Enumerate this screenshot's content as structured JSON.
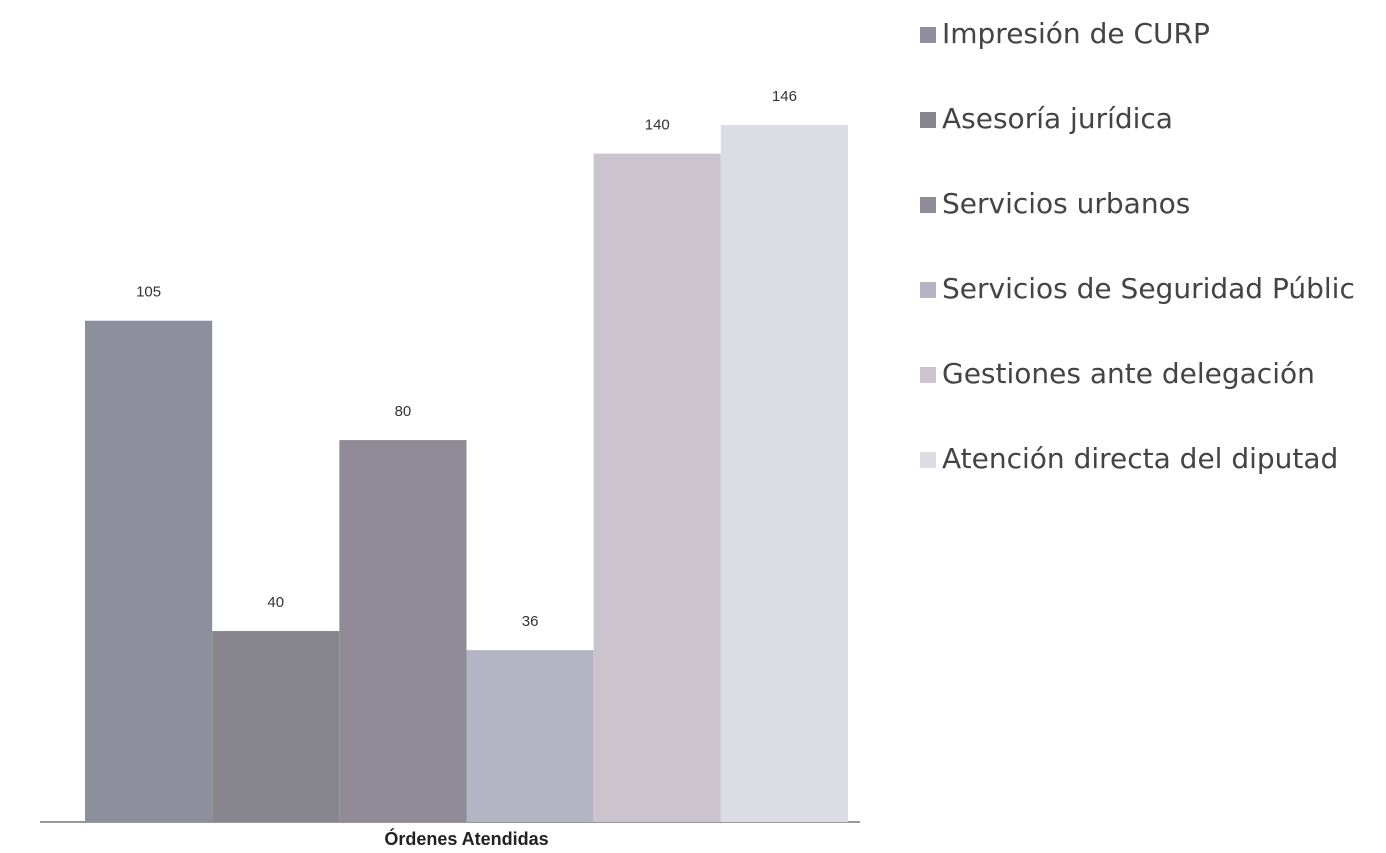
{
  "chart_data": {
    "type": "bar",
    "categories": [
      "Órdenes Atendidas"
    ],
    "series": [
      {
        "name": "Impresión de CURP",
        "color": "#8d909c",
        "values": [
          105
        ]
      },
      {
        "name": "Asesoría jurídica",
        "color": "#87868f",
        "values": [
          40
        ]
      },
      {
        "name": "Servicios urbanos",
        "color": "#908b96",
        "values": [
          80
        ]
      },
      {
        "name": "Servicios de Seguridad Públic",
        "color": "#b3b5c4",
        "values": [
          36
        ]
      },
      {
        "name": "Gestiones ante delegación",
        "color": "#cbc3cd",
        "values": [
          140
        ]
      },
      {
        "name": "Atención directa del diputad",
        "color": "#dcdde4",
        "values": [
          146
        ]
      }
    ],
    "legend": "right"
  }
}
